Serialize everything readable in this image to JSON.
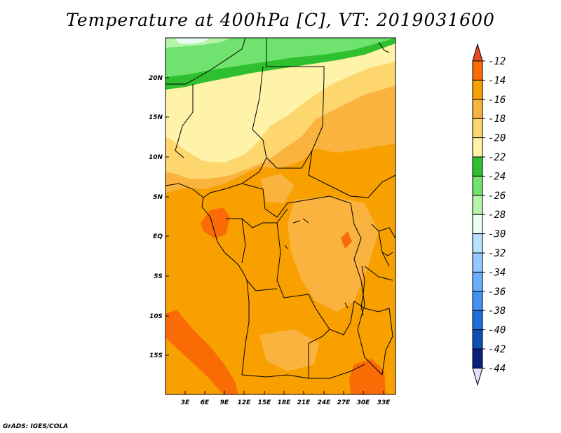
{
  "title": "Temperature at 400hPa [C], VT: 2019031600",
  "credit": "GrADS: IGES/COLA",
  "map": {
    "lat_labels": [
      "20N",
      "15N",
      "10N",
      "5N",
      "EQ",
      "5S",
      "10S",
      "15S"
    ],
    "lon_labels": [
      "3E",
      "6E",
      "9E",
      "12E",
      "15E",
      "18E",
      "21E",
      "24E",
      "27E",
      "30E",
      "33E"
    ]
  },
  "colorbar": {
    "labels": [
      "-12",
      "-14",
      "-16",
      "-18",
      "-20",
      "-22",
      "-24",
      "-26",
      "-28",
      "-30",
      "-32",
      "-34",
      "-36",
      "-38",
      "-40",
      "-42",
      "-44"
    ],
    "colors": [
      "#e8491e",
      "#fa6b06",
      "#f7a000",
      "#fab33f",
      "#fdd76d",
      "#fff2a9",
      "#2fc02f",
      "#6fe26f",
      "#b5f5aa",
      "#e9fdf0",
      "#b7e2ff",
      "#92c9ff",
      "#69aefd",
      "#4291f3",
      "#1e6fdb",
      "#0d4fb3",
      "#0c1e7b",
      "#e1e1fa"
    ]
  }
}
